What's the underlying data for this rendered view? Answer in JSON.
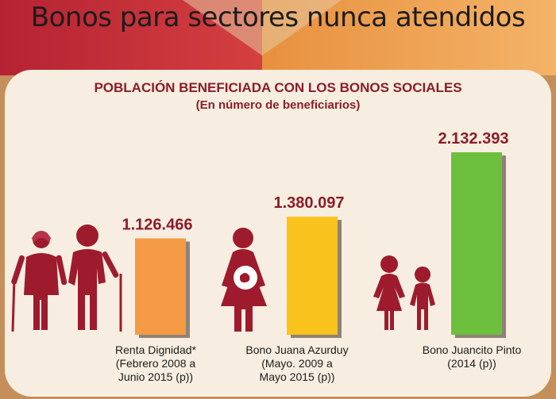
{
  "page": {
    "title": "Bonos para sectores nunca atendidos"
  },
  "colors": {
    "background_left": "#c62a38",
    "background_right": "#f2a45a",
    "panel": "#f7eee1",
    "title_red": "#8c1c2a",
    "figure_red": "#9e1b2e"
  },
  "icons": [
    "elderly-couple-icon",
    "pregnant-woman-icon",
    "children-icon"
  ],
  "chart_data": {
    "type": "bar",
    "title": "POBLACIÓN BENEFICIADA CON LOS BONOS SOCIALES",
    "subtitle": "(En número de beneficiarios)",
    "categories": [
      "Renta Dignidad* (Febrero 2008 a Junio 2015 (p))",
      "Bono Juana Azurduy (Mayo. 2009 a Mayo 2015 (p))",
      "Bono Juancito Pinto (2014 (p))"
    ],
    "category_lines": [
      [
        "Renta Dignidad*",
        "(Febrero 2008 a",
        "Junio 2015 (p))"
      ],
      [
        "Bono Juana Azurduy",
        "(Mayo. 2009 a",
        "Mayo 2015 (p))"
      ],
      [
        "Bono Juancito Pinto",
        "(2014 (p))"
      ]
    ],
    "values": [
      1126466,
      1380097,
      2132393
    ],
    "data_labels": [
      "1.126.466",
      "1.380.097",
      "2.132.393"
    ],
    "bar_colors": [
      "#f59a45",
      "#fac21c",
      "#6dbf3e"
    ],
    "ylim": [
      0,
      2132393
    ],
    "grid": false,
    "legend": "none"
  }
}
